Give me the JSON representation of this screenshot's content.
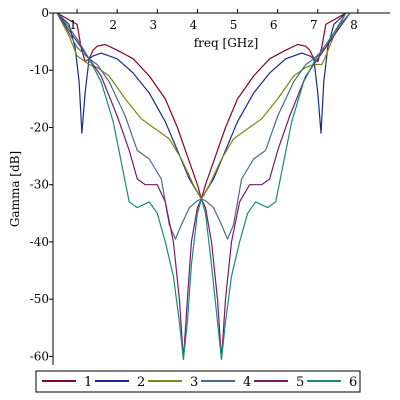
{
  "chart_data": {
    "type": "line",
    "xlabel": "freq [GHz]",
    "ylabel": "Gamma [dB]",
    "xlim": [
      0.4,
      8.8
    ],
    "ylim": [
      -61.5,
      0
    ],
    "x_ticks": [
      1,
      2,
      3,
      4,
      5,
      6,
      7,
      8
    ],
    "y_ticks": [
      0,
      -10,
      -20,
      -30,
      -40,
      -50,
      -60
    ],
    "grid": false,
    "legend_position": "bottom",
    "series": [
      {
        "name": "1",
        "color": "#8b0030",
        "points": [
          [
            0.5,
            0
          ],
          [
            1.0,
            -2
          ],
          [
            1.1,
            -6
          ],
          [
            1.2,
            -8.5
          ],
          [
            1.3,
            -8
          ],
          [
            1.4,
            -6.5
          ],
          [
            1.5,
            -5.8
          ],
          [
            1.7,
            -5.5
          ],
          [
            2.0,
            -6.5
          ],
          [
            2.4,
            -8
          ],
          [
            2.8,
            -11
          ],
          [
            3.2,
            -15
          ],
          [
            3.5,
            -20
          ],
          [
            3.8,
            -26
          ],
          [
            4.0,
            -30
          ],
          [
            4.1,
            -32.5
          ],
          [
            4.2,
            -30
          ],
          [
            4.4,
            -26
          ],
          [
            4.7,
            -20
          ],
          [
            5.0,
            -15
          ],
          [
            5.4,
            -11
          ],
          [
            5.8,
            -8
          ],
          [
            6.2,
            -6.5
          ],
          [
            6.5,
            -5.5
          ],
          [
            6.7,
            -5.8
          ],
          [
            6.8,
            -6.5
          ],
          [
            6.9,
            -8
          ],
          [
            7.0,
            -8.5
          ],
          [
            7.1,
            -6
          ],
          [
            7.2,
            -2
          ],
          [
            7.7,
            0
          ]
        ]
      },
      {
        "name": "2",
        "color": "#1a2a8a",
        "points": [
          [
            0.5,
            0
          ],
          [
            0.8,
            -2
          ],
          [
            0.95,
            -6
          ],
          [
            1.05,
            -12
          ],
          [
            1.12,
            -21
          ],
          [
            1.2,
            -14
          ],
          [
            1.3,
            -8
          ],
          [
            1.4,
            -7.5
          ],
          [
            1.6,
            -7
          ],
          [
            2.0,
            -8
          ],
          [
            2.4,
            -10.5
          ],
          [
            2.8,
            -14
          ],
          [
            3.2,
            -19
          ],
          [
            3.5,
            -24
          ],
          [
            3.8,
            -29
          ],
          [
            4.1,
            -32.5
          ],
          [
            4.4,
            -29
          ],
          [
            4.7,
            -24
          ],
          [
            5.0,
            -19
          ],
          [
            5.4,
            -14
          ],
          [
            5.8,
            -10.5
          ],
          [
            6.2,
            -8
          ],
          [
            6.6,
            -7
          ],
          [
            6.8,
            -7.5
          ],
          [
            6.9,
            -8
          ],
          [
            7.0,
            -14
          ],
          [
            7.08,
            -21
          ],
          [
            7.15,
            -12
          ],
          [
            7.25,
            -6
          ],
          [
            7.4,
            -2
          ],
          [
            7.7,
            0
          ]
        ]
      },
      {
        "name": "3",
        "color": "#7a8a10",
        "points": [
          [
            0.5,
            0
          ],
          [
            0.8,
            -4
          ],
          [
            1.0,
            -7.5
          ],
          [
            1.3,
            -9
          ],
          [
            1.5,
            -9.5
          ],
          [
            1.8,
            -11
          ],
          [
            2.2,
            -15
          ],
          [
            2.6,
            -18.5
          ],
          [
            3.0,
            -20.5
          ],
          [
            3.3,
            -22
          ],
          [
            3.6,
            -25.5
          ],
          [
            3.9,
            -30
          ],
          [
            4.1,
            -32.5
          ],
          [
            4.3,
            -30
          ],
          [
            4.6,
            -25.5
          ],
          [
            4.9,
            -22
          ],
          [
            5.2,
            -20.5
          ],
          [
            5.6,
            -18.5
          ],
          [
            6.0,
            -15
          ],
          [
            6.4,
            -11
          ],
          [
            6.7,
            -9.5
          ],
          [
            6.9,
            -9
          ],
          [
            7.1,
            -9
          ],
          [
            7.2,
            -7.5
          ],
          [
            7.4,
            -4
          ],
          [
            7.7,
            0
          ]
        ]
      },
      {
        "name": "4",
        "color": "#4a6a8a",
        "points": [
          [
            0.5,
            0
          ],
          [
            0.8,
            -3.5
          ],
          [
            1.0,
            -6
          ],
          [
            1.3,
            -8
          ],
          [
            1.5,
            -9
          ],
          [
            1.8,
            -12
          ],
          [
            2.2,
            -18
          ],
          [
            2.5,
            -24
          ],
          [
            2.8,
            -25.5
          ],
          [
            3.1,
            -29
          ],
          [
            3.3,
            -37
          ],
          [
            3.45,
            -39.5
          ],
          [
            3.6,
            -37
          ],
          [
            3.8,
            -34
          ],
          [
            4.0,
            -32.8
          ],
          [
            4.1,
            -32.5
          ],
          [
            4.2,
            -32.8
          ],
          [
            4.4,
            -34
          ],
          [
            4.6,
            -37
          ],
          [
            4.75,
            -39.5
          ],
          [
            4.9,
            -37
          ],
          [
            5.1,
            -29
          ],
          [
            5.4,
            -25.5
          ],
          [
            5.7,
            -24
          ],
          [
            6.0,
            -18
          ],
          [
            6.4,
            -12
          ],
          [
            6.7,
            -9
          ],
          [
            6.9,
            -8
          ],
          [
            7.2,
            -6
          ],
          [
            7.4,
            -3.5
          ],
          [
            7.7,
            0
          ]
        ]
      },
      {
        "name": "5",
        "color": "#7a1a6a",
        "points": [
          [
            0.5,
            0
          ],
          [
            0.8,
            -3
          ],
          [
            1.0,
            -5
          ],
          [
            1.3,
            -8
          ],
          [
            1.6,
            -11
          ],
          [
            2.0,
            -18
          ],
          [
            2.3,
            -24
          ],
          [
            2.5,
            -29
          ],
          [
            2.7,
            -30
          ],
          [
            3.0,
            -30
          ],
          [
            3.2,
            -33
          ],
          [
            3.4,
            -40
          ],
          [
            3.55,
            -50
          ],
          [
            3.65,
            -60.5
          ],
          [
            3.75,
            -50
          ],
          [
            3.85,
            -40
          ],
          [
            4.0,
            -34
          ],
          [
            4.1,
            -32.5
          ],
          [
            4.2,
            -34
          ],
          [
            4.35,
            -40
          ],
          [
            4.5,
            -50
          ],
          [
            4.6,
            -60.5
          ],
          [
            4.7,
            -50
          ],
          [
            4.85,
            -40
          ],
          [
            5.05,
            -33
          ],
          [
            5.3,
            -30
          ],
          [
            5.6,
            -30
          ],
          [
            5.8,
            -29
          ],
          [
            6.0,
            -24
          ],
          [
            6.3,
            -18
          ],
          [
            6.7,
            -11
          ],
          [
            7.0,
            -8
          ],
          [
            7.3,
            -5
          ],
          [
            7.5,
            -3
          ],
          [
            7.8,
            0
          ]
        ]
      },
      {
        "name": "6",
        "color": "#1a8a7a",
        "points": [
          [
            0.5,
            0
          ],
          [
            0.8,
            -2.5
          ],
          [
            1.0,
            -4.5
          ],
          [
            1.3,
            -8
          ],
          [
            1.6,
            -12
          ],
          [
            1.9,
            -19
          ],
          [
            2.1,
            -26
          ],
          [
            2.3,
            -33
          ],
          [
            2.5,
            -34
          ],
          [
            2.8,
            -33
          ],
          [
            3.0,
            -35
          ],
          [
            3.2,
            -40
          ],
          [
            3.4,
            -46
          ],
          [
            3.55,
            -54
          ],
          [
            3.65,
            -60.5
          ],
          [
            3.75,
            -54
          ],
          [
            3.85,
            -44
          ],
          [
            4.0,
            -35
          ],
          [
            4.1,
            -32.5
          ],
          [
            4.2,
            -35
          ],
          [
            4.35,
            -44
          ],
          [
            4.5,
            -54
          ],
          [
            4.6,
            -60.5
          ],
          [
            4.7,
            -54
          ],
          [
            4.85,
            -46
          ],
          [
            5.05,
            -40
          ],
          [
            5.25,
            -35
          ],
          [
            5.45,
            -33
          ],
          [
            5.75,
            -34
          ],
          [
            5.95,
            -33
          ],
          [
            6.15,
            -26
          ],
          [
            6.35,
            -19
          ],
          [
            6.65,
            -12
          ],
          [
            6.95,
            -8
          ],
          [
            7.3,
            -4.5
          ],
          [
            7.5,
            -2.5
          ],
          [
            7.8,
            0
          ]
        ]
      }
    ]
  }
}
